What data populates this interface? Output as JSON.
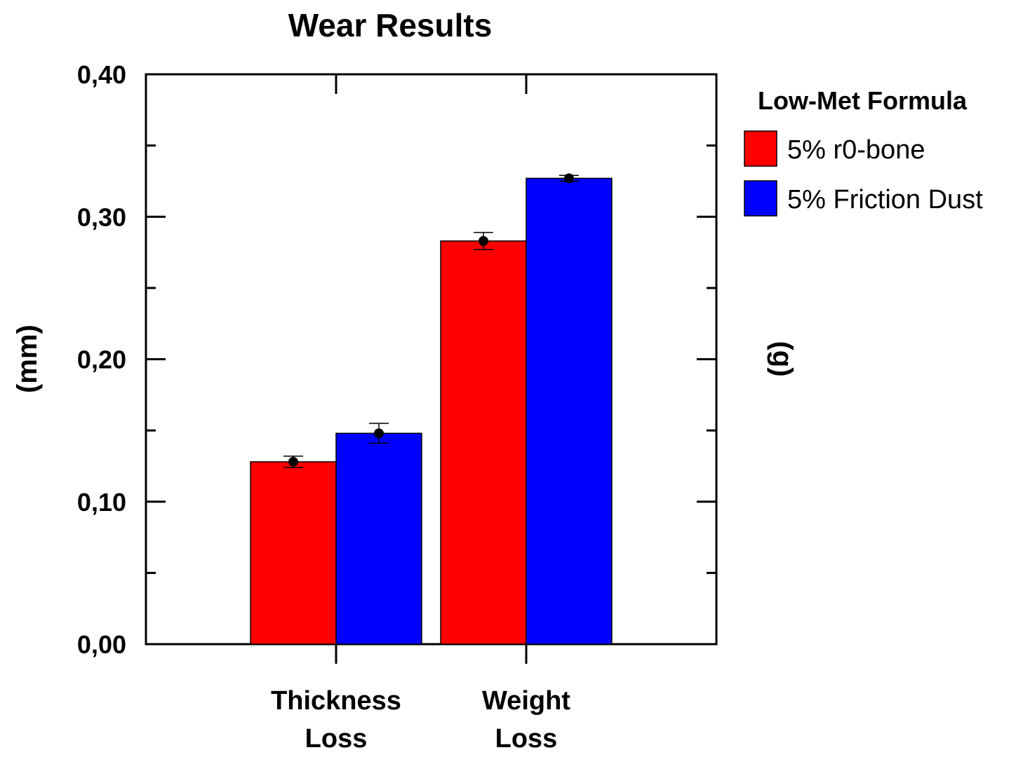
{
  "chart_data": {
    "type": "bar",
    "title": "Wear Results",
    "ylabel_left": "(mm)",
    "ylabel_right": "(g)",
    "ylim": [
      0,
      0.4
    ],
    "yticks": [
      0.0,
      0.1,
      0.2,
      0.3,
      0.4
    ],
    "ytick_labels": [
      "0,00",
      "0,10",
      "0,20",
      "0,30",
      "0,40"
    ],
    "categories": [
      {
        "line1": "Thickness",
        "line2": "Loss"
      },
      {
        "line1": "Weight",
        "line2": "Loss"
      }
    ],
    "legend": {
      "title": "Low-Met Formula",
      "position": "right"
    },
    "series": [
      {
        "name": "5% r0-bone",
        "color": "#ff0000",
        "values": [
          0.128,
          0.283
        ],
        "errors": [
          0.004,
          0.006
        ]
      },
      {
        "name": "5% Friction Dust",
        "color": "#0000ff",
        "values": [
          0.148,
          0.327
        ],
        "errors": [
          0.007,
          0.002
        ]
      }
    ],
    "grid": false
  }
}
